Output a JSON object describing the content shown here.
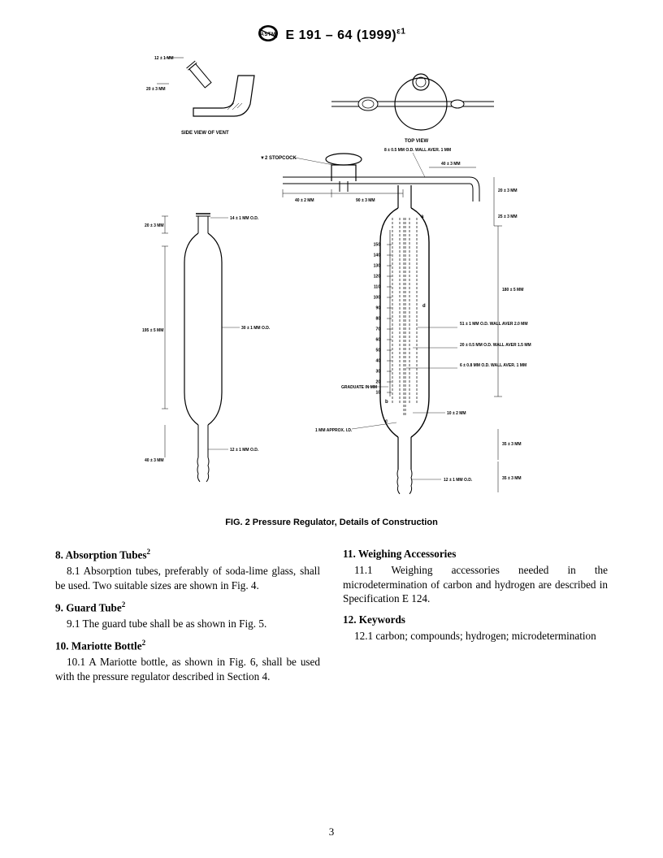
{
  "header": {
    "designation": "E 191 – 64 (1999)",
    "superscript": "ε1"
  },
  "figure": {
    "caption": "FIG. 2 Pressure Regulator, Details of Construction",
    "labels": {
      "side_view": "SIDE  VIEW  OF  VENT",
      "top_view": "TOP   VIEW",
      "stopcock": "▼2  STOPCOCK",
      "graduate": "GRADUATE IN  MM",
      "approx": "1 MM APPROX. I.D.",
      "dim_12_1": "12 ± 1 MM",
      "dim_20_3": "20 ± 3 MM",
      "dim_40_2": "40 ± 2 MM",
      "dim_90_3": "90 ± 3 MM",
      "dim_8_05": "8 ± 0.5 MM O.D. WALL AVER. 1 MM",
      "dim_40_3": "40 ± 3 MM",
      "dim_25_3": "25 ± 3 MM",
      "dim_14_1": "14 ± 1 MM O.D.",
      "dim_180_5": "180 ± 5 MM",
      "dim_195_5": "195 ± 5 MM",
      "dim_30_1": "30 ± 1 MM O.D.",
      "dim_51_1": "51 ± 1 MM O.D. WALL AVER 2.0 MM",
      "dim_20_05": "20 ± 0.5 MM O.D. WALL AVER 1.5 MM",
      "dim_6_08": "6 ± 0.8 MM O.D. WALL AVER. 1 MM",
      "dim_10_2": "10 ± 2 MM",
      "dim_35_3": "35 ± 3 MM",
      "dim_12_1od": "12 ± 1 MM O.D."
    },
    "scale_values": [
      "10",
      "20",
      "30",
      "40",
      "50",
      "60",
      "70",
      "80",
      "90",
      "100",
      "110",
      "120",
      "130",
      "140",
      "150"
    ],
    "line_color": "#000000",
    "stroke_width_main": 1.2,
    "stroke_width_thin": 0.6
  },
  "sections": {
    "s8": {
      "heading": "8. Absorption Tubes",
      "footnote": "2",
      "para": "8.1 Absorption tubes, preferably of soda-lime glass, shall be used. Two suitable sizes are shown in Fig. 4."
    },
    "s9": {
      "heading": "9. Guard Tube",
      "footnote": "2",
      "para": "9.1 The guard tube shall be as shown in Fig. 5."
    },
    "s10": {
      "heading": "10. Mariotte Bottle",
      "footnote": "2",
      "para": "10.1 A Mariotte bottle, as shown in Fig. 6, shall be used with the pressure regulator described in Section 4."
    },
    "s11": {
      "heading": "11. Weighing Accessories",
      "para": "11.1 Weighing accessories needed in the microdetermination of carbon and hydrogen are described in Specification E 124."
    },
    "s12": {
      "heading": "12. Keywords",
      "para": "12.1 carbon; compounds; hydrogen; microdetermination"
    }
  },
  "page_number": "3"
}
